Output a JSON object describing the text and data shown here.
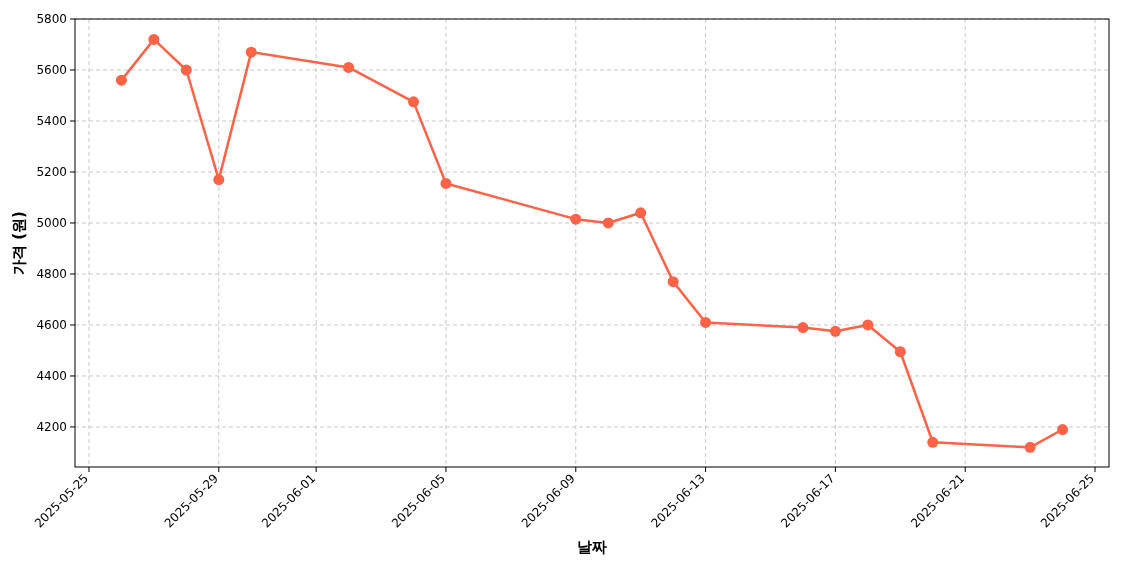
{
  "chart_data": {
    "type": "line",
    "xlabel": "날짜",
    "ylabel": "가격 (원)",
    "x": [
      "2025-05-26",
      "2025-05-27",
      "2025-05-28",
      "2025-05-29",
      "2025-05-30",
      "2025-06-02",
      "2025-06-04",
      "2025-06-05",
      "2025-06-09",
      "2025-06-10",
      "2025-06-11",
      "2025-06-12",
      "2025-06-13",
      "2025-06-16",
      "2025-06-17",
      "2025-06-18",
      "2025-06-19",
      "2025-06-20",
      "2025-06-23",
      "2025-06-24"
    ],
    "series": [
      {
        "color": "#ff6347",
        "values": [
          5560,
          5720,
          5600,
          5170,
          5670,
          5610,
          5475,
          5155,
          5015,
          5000,
          5040,
          4770,
          4610,
          4590,
          4575,
          4600,
          4495,
          4140,
          4120,
          4190
        ]
      }
    ],
    "xlim": [
      "2025-05-24T13:40",
      "2025-06-25T10:20"
    ],
    "xticks": [
      "2025-05-25",
      "2025-05-29",
      "2025-06-01",
      "2025-06-05",
      "2025-06-09",
      "2025-06-13",
      "2025-06-17",
      "2025-06-21",
      "2025-06-25"
    ],
    "ylim": [
      4043,
      5800
    ],
    "yticks": [
      4200,
      4400,
      4600,
      4800,
      5000,
      5200,
      5400,
      5600,
      5800
    ],
    "grid": true,
    "marker": "circle",
    "line_style": "solid"
  }
}
